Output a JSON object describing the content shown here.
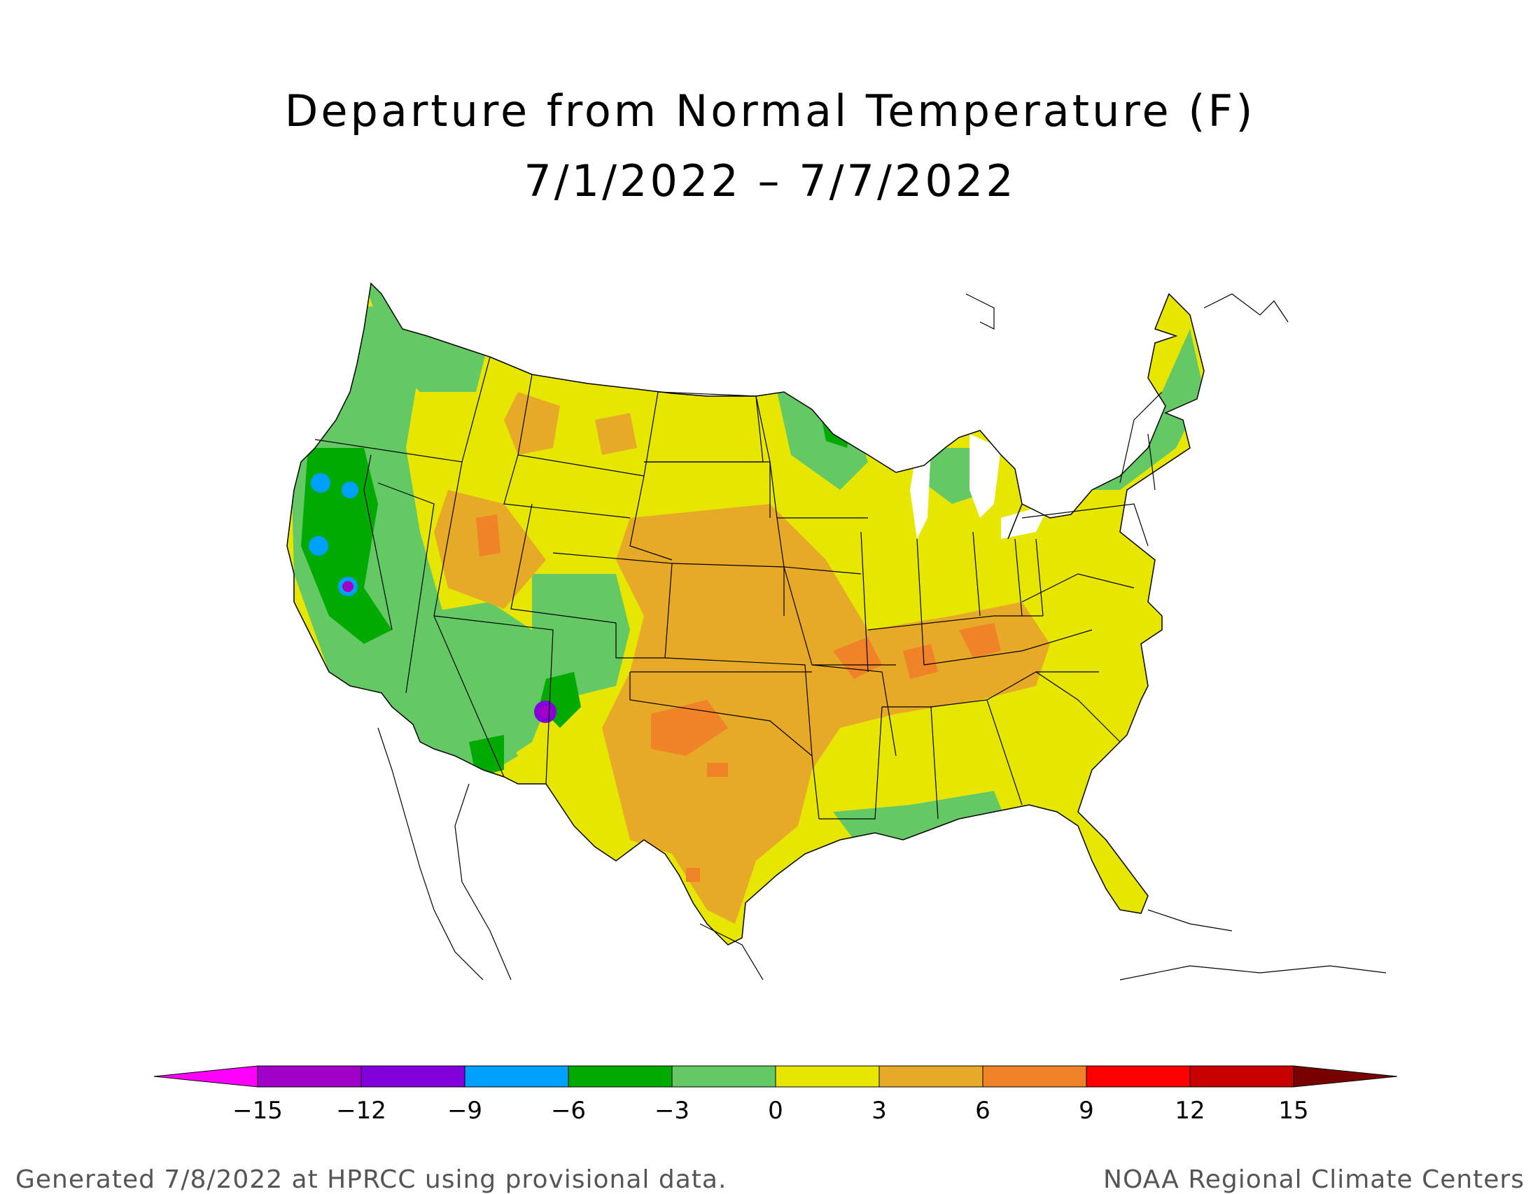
{
  "title": {
    "line1": "Departure from Normal Temperature (F)",
    "line2": "7/1/2022 – 7/7/2022"
  },
  "footer": {
    "left": "Generated 7/8/2022 at HPRCC using provisional data.",
    "right": "NOAA Regional Climate Centers"
  },
  "legend": {
    "unit": "F",
    "ticks": [
      "−15",
      "−12",
      "−9",
      "−6",
      "−3",
      "0",
      "3",
      "6",
      "9",
      "12",
      "15"
    ],
    "bins": [
      {
        "range": "< -15",
        "color": "#ff00ff"
      },
      {
        "range": "-15 to -12",
        "color": "#a100c8"
      },
      {
        "range": "-12 to -9",
        "color": "#8200dc"
      },
      {
        "range": "-9 to -6",
        "color": "#00a0ff"
      },
      {
        "range": "-6 to -3",
        "color": "#00aa00"
      },
      {
        "range": "-3 to 0",
        "color": "#64c864"
      },
      {
        "range": "0 to 3",
        "color": "#e6e600"
      },
      {
        "range": "3 to 6",
        "color": "#e6aa28"
      },
      {
        "range": "6 to 9",
        "color": "#f08228"
      },
      {
        "range": "9 to 12",
        "color": "#ff0000"
      },
      {
        "range": "12 to 15",
        "color": "#c80000"
      },
      {
        "range": "> 15",
        "color": "#780000"
      }
    ]
  },
  "map": {
    "region": "Contiguous United States",
    "colors": {
      "cool": "#64c864",
      "colder": "#00aa00",
      "coldest": "#00a0ff",
      "extreme_cold": "#a100c8",
      "neutral_warm": "#e6e600",
      "warm": "#e6aa28",
      "hot": "#f08228",
      "lakes": "#ffffff",
      "outline": "#000000"
    }
  }
}
